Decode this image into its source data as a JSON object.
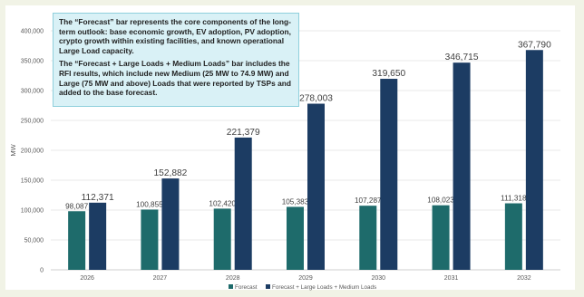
{
  "callout": {
    "paragraph1": "The “Forecast” bar represents the core components of the long-term outlook: base economic growth, EV adoption, PV adoption, crypto growth within existing facilities, and known operational Large Load capacity.",
    "paragraph2": "The “Forecast + Large Loads + Medium Loads” bar includes the RFI results, which include new Medium (25 MW to 74.9 MW) and Large (75 MW and above) Loads that were reported by TSPs and added to the base forecast."
  },
  "chart_data": {
    "type": "bar",
    "title": "",
    "xlabel": "",
    "ylabel": "MW",
    "categories": [
      "2026",
      "2027",
      "2028",
      "2029",
      "2030",
      "2031",
      "2032"
    ],
    "series": [
      {
        "name": "Forecast",
        "values": [
          98087,
          100855,
          102420,
          105383,
          107287,
          108023,
          111318
        ],
        "labels": [
          "98,087",
          "100,855",
          "102,420",
          "105,383",
          "107,287",
          "108,023",
          "111,318"
        ],
        "color": "#1e6b6b"
      },
      {
        "name": "Forecast + Large Loads + Medium Loads",
        "values": [
          112371,
          152882,
          221379,
          278003,
          319650,
          346715,
          367790
        ],
        "labels": [
          "112,371",
          "152,882",
          "221,379",
          "278,003",
          "319,650",
          "346,715",
          "367,790"
        ],
        "color": "#1c3c63"
      }
    ],
    "ylim": [
      0,
      400000
    ],
    "yticks": [
      0,
      50000,
      100000,
      150000,
      200000,
      250000,
      300000,
      350000,
      400000
    ],
    "ytick_labels": [
      "0",
      "50,000",
      "100,000",
      "150,000",
      "200,000",
      "250,000",
      "300,000",
      "350,000",
      "400,000"
    ],
    "grid": true,
    "legend_position": "bottom"
  }
}
